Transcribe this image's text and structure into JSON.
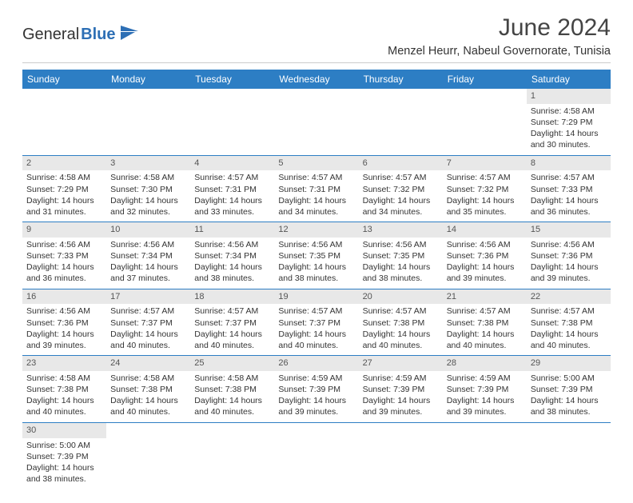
{
  "logo": {
    "general": "General",
    "blue": "Blue"
  },
  "title": "June 2024",
  "location": "Menzel Heurr, Nabeul Governorate, Tunisia",
  "colors": {
    "header_bg": "#2d7ec4",
    "daynum_bg": "#e8e8e8",
    "cell_border": "#2d7ec4",
    "text": "#333333",
    "logo_blue": "#2d6fb5"
  },
  "day_labels": [
    "Sunday",
    "Monday",
    "Tuesday",
    "Wednesday",
    "Thursday",
    "Friday",
    "Saturday"
  ],
  "weeks": [
    [
      null,
      null,
      null,
      null,
      null,
      null,
      {
        "n": "1",
        "sr": "Sunrise: 4:58 AM",
        "ss": "Sunset: 7:29 PM",
        "dl1": "Daylight: 14 hours",
        "dl2": "and 30 minutes."
      }
    ],
    [
      {
        "n": "2",
        "sr": "Sunrise: 4:58 AM",
        "ss": "Sunset: 7:29 PM",
        "dl1": "Daylight: 14 hours",
        "dl2": "and 31 minutes."
      },
      {
        "n": "3",
        "sr": "Sunrise: 4:58 AM",
        "ss": "Sunset: 7:30 PM",
        "dl1": "Daylight: 14 hours",
        "dl2": "and 32 minutes."
      },
      {
        "n": "4",
        "sr": "Sunrise: 4:57 AM",
        "ss": "Sunset: 7:31 PM",
        "dl1": "Daylight: 14 hours",
        "dl2": "and 33 minutes."
      },
      {
        "n": "5",
        "sr": "Sunrise: 4:57 AM",
        "ss": "Sunset: 7:31 PM",
        "dl1": "Daylight: 14 hours",
        "dl2": "and 34 minutes."
      },
      {
        "n": "6",
        "sr": "Sunrise: 4:57 AM",
        "ss": "Sunset: 7:32 PM",
        "dl1": "Daylight: 14 hours",
        "dl2": "and 34 minutes."
      },
      {
        "n": "7",
        "sr": "Sunrise: 4:57 AM",
        "ss": "Sunset: 7:32 PM",
        "dl1": "Daylight: 14 hours",
        "dl2": "and 35 minutes."
      },
      {
        "n": "8",
        "sr": "Sunrise: 4:57 AM",
        "ss": "Sunset: 7:33 PM",
        "dl1": "Daylight: 14 hours",
        "dl2": "and 36 minutes."
      }
    ],
    [
      {
        "n": "9",
        "sr": "Sunrise: 4:56 AM",
        "ss": "Sunset: 7:33 PM",
        "dl1": "Daylight: 14 hours",
        "dl2": "and 36 minutes."
      },
      {
        "n": "10",
        "sr": "Sunrise: 4:56 AM",
        "ss": "Sunset: 7:34 PM",
        "dl1": "Daylight: 14 hours",
        "dl2": "and 37 minutes."
      },
      {
        "n": "11",
        "sr": "Sunrise: 4:56 AM",
        "ss": "Sunset: 7:34 PM",
        "dl1": "Daylight: 14 hours",
        "dl2": "and 38 minutes."
      },
      {
        "n": "12",
        "sr": "Sunrise: 4:56 AM",
        "ss": "Sunset: 7:35 PM",
        "dl1": "Daylight: 14 hours",
        "dl2": "and 38 minutes."
      },
      {
        "n": "13",
        "sr": "Sunrise: 4:56 AM",
        "ss": "Sunset: 7:35 PM",
        "dl1": "Daylight: 14 hours",
        "dl2": "and 38 minutes."
      },
      {
        "n": "14",
        "sr": "Sunrise: 4:56 AM",
        "ss": "Sunset: 7:36 PM",
        "dl1": "Daylight: 14 hours",
        "dl2": "and 39 minutes."
      },
      {
        "n": "15",
        "sr": "Sunrise: 4:56 AM",
        "ss": "Sunset: 7:36 PM",
        "dl1": "Daylight: 14 hours",
        "dl2": "and 39 minutes."
      }
    ],
    [
      {
        "n": "16",
        "sr": "Sunrise: 4:56 AM",
        "ss": "Sunset: 7:36 PM",
        "dl1": "Daylight: 14 hours",
        "dl2": "and 39 minutes."
      },
      {
        "n": "17",
        "sr": "Sunrise: 4:57 AM",
        "ss": "Sunset: 7:37 PM",
        "dl1": "Daylight: 14 hours",
        "dl2": "and 40 minutes."
      },
      {
        "n": "18",
        "sr": "Sunrise: 4:57 AM",
        "ss": "Sunset: 7:37 PM",
        "dl1": "Daylight: 14 hours",
        "dl2": "and 40 minutes."
      },
      {
        "n": "19",
        "sr": "Sunrise: 4:57 AM",
        "ss": "Sunset: 7:37 PM",
        "dl1": "Daylight: 14 hours",
        "dl2": "and 40 minutes."
      },
      {
        "n": "20",
        "sr": "Sunrise: 4:57 AM",
        "ss": "Sunset: 7:38 PM",
        "dl1": "Daylight: 14 hours",
        "dl2": "and 40 minutes."
      },
      {
        "n": "21",
        "sr": "Sunrise: 4:57 AM",
        "ss": "Sunset: 7:38 PM",
        "dl1": "Daylight: 14 hours",
        "dl2": "and 40 minutes."
      },
      {
        "n": "22",
        "sr": "Sunrise: 4:57 AM",
        "ss": "Sunset: 7:38 PM",
        "dl1": "Daylight: 14 hours",
        "dl2": "and 40 minutes."
      }
    ],
    [
      {
        "n": "23",
        "sr": "Sunrise: 4:58 AM",
        "ss": "Sunset: 7:38 PM",
        "dl1": "Daylight: 14 hours",
        "dl2": "and 40 minutes."
      },
      {
        "n": "24",
        "sr": "Sunrise: 4:58 AM",
        "ss": "Sunset: 7:38 PM",
        "dl1": "Daylight: 14 hours",
        "dl2": "and 40 minutes."
      },
      {
        "n": "25",
        "sr": "Sunrise: 4:58 AM",
        "ss": "Sunset: 7:38 PM",
        "dl1": "Daylight: 14 hours",
        "dl2": "and 40 minutes."
      },
      {
        "n": "26",
        "sr": "Sunrise: 4:59 AM",
        "ss": "Sunset: 7:39 PM",
        "dl1": "Daylight: 14 hours",
        "dl2": "and 39 minutes."
      },
      {
        "n": "27",
        "sr": "Sunrise: 4:59 AM",
        "ss": "Sunset: 7:39 PM",
        "dl1": "Daylight: 14 hours",
        "dl2": "and 39 minutes."
      },
      {
        "n": "28",
        "sr": "Sunrise: 4:59 AM",
        "ss": "Sunset: 7:39 PM",
        "dl1": "Daylight: 14 hours",
        "dl2": "and 39 minutes."
      },
      {
        "n": "29",
        "sr": "Sunrise: 5:00 AM",
        "ss": "Sunset: 7:39 PM",
        "dl1": "Daylight: 14 hours",
        "dl2": "and 38 minutes."
      }
    ],
    [
      {
        "n": "30",
        "sr": "Sunrise: 5:00 AM",
        "ss": "Sunset: 7:39 PM",
        "dl1": "Daylight: 14 hours",
        "dl2": "and 38 minutes."
      },
      null,
      null,
      null,
      null,
      null,
      null
    ]
  ]
}
